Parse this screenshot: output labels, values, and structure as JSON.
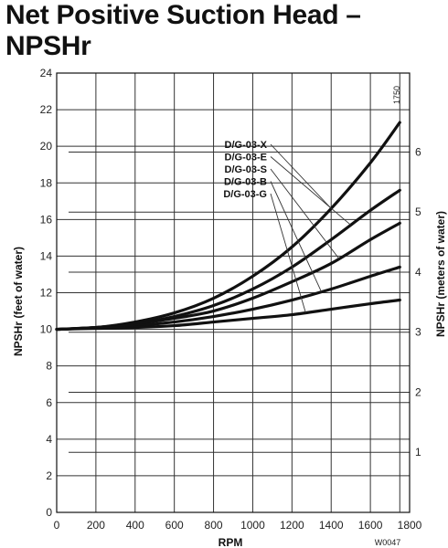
{
  "title_line1": "Net Positive Suction Head –",
  "title_line2": "NPSHr",
  "chart_data": {
    "type": "line",
    "xlabel": "RPM",
    "ylabel": "NPSHr (feet of water)",
    "y2label": "NPSHr (meters of water)",
    "xlim": [
      0,
      1800
    ],
    "ylim": [
      0,
      24
    ],
    "x_ticks": [
      0,
      200,
      400,
      600,
      800,
      1000,
      1200,
      1400,
      1600,
      1800
    ],
    "y_ticks": [
      0,
      2,
      4,
      6,
      8,
      10,
      12,
      14,
      16,
      18,
      20,
      22,
      24
    ],
    "y2_ticks": [
      1,
      2,
      3,
      4,
      5,
      6
    ],
    "marker_label": "1750",
    "code": "W0047",
    "grid": true,
    "x": [
      0,
      200,
      400,
      600,
      800,
      1000,
      1200,
      1400,
      1600,
      1750
    ],
    "series": [
      {
        "name": "D/G-03-X",
        "values": [
          10.0,
          10.1,
          10.4,
          10.9,
          11.7,
          12.9,
          14.5,
          16.6,
          19.1,
          21.3
        ]
      },
      {
        "name": "D/G-03-E",
        "values": [
          10.0,
          10.1,
          10.3,
          10.7,
          11.3,
          12.2,
          13.4,
          14.9,
          16.5,
          17.6
        ]
      },
      {
        "name": "D/G-03-S",
        "values": [
          10.0,
          10.1,
          10.3,
          10.6,
          11.0,
          11.7,
          12.6,
          13.6,
          14.9,
          15.8
        ]
      },
      {
        "name": "D/G-03-B",
        "values": [
          10.0,
          10.1,
          10.2,
          10.4,
          10.7,
          11.1,
          11.6,
          12.2,
          12.9,
          13.4
        ]
      },
      {
        "name": "D/G-03-G",
        "values": [
          10.0,
          10.05,
          10.1,
          10.2,
          10.4,
          10.6,
          10.8,
          11.1,
          11.4,
          11.6
        ]
      }
    ]
  }
}
